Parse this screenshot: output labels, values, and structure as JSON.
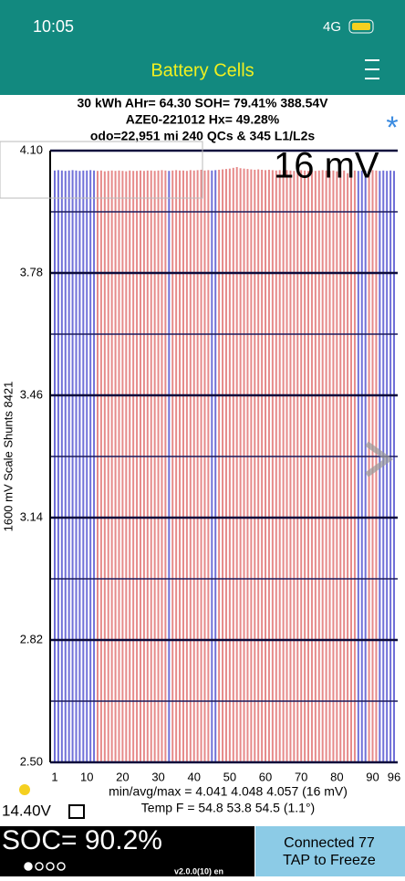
{
  "status_bar": {
    "time": "10:05",
    "network": "4G"
  },
  "header": {
    "title": "Battery Cells"
  },
  "info": {
    "lines": [
      "30 kWh  AHr= 64.30  SOH= 79.41%   388.54V",
      "AZE0-221012   Hx= 49.28%",
      "odo=22,951 mi 240 QCs & 345 L1/L2s"
    ],
    "star": "*"
  },
  "chart_data": {
    "type": "bar",
    "ylabel": "1600 mV Scale   Shunts 8421",
    "annotation": "16 mV",
    "categories": [
      "1",
      null,
      null,
      null,
      null,
      null,
      null,
      null,
      null,
      "10",
      null,
      null,
      null,
      null,
      null,
      null,
      null,
      null,
      null,
      "20",
      null,
      null,
      null,
      null,
      null,
      null,
      null,
      null,
      null,
      "30",
      null,
      null,
      null,
      null,
      null,
      null,
      null,
      null,
      null,
      "40",
      null,
      null,
      null,
      null,
      null,
      null,
      null,
      null,
      null,
      "50",
      null,
      null,
      null,
      null,
      null,
      null,
      null,
      null,
      null,
      "60",
      null,
      null,
      null,
      null,
      null,
      null,
      null,
      null,
      null,
      "70",
      null,
      null,
      null,
      null,
      null,
      null,
      null,
      null,
      null,
      "80",
      null,
      null,
      null,
      null,
      null,
      null,
      null,
      null,
      null,
      "90",
      null,
      null,
      null,
      null,
      null,
      "96"
    ],
    "values": [
      4.048,
      4.049,
      4.048,
      4.047,
      4.048,
      4.049,
      4.048,
      4.047,
      4.048,
      4.048,
      4.049,
      4.048,
      4.047,
      4.048,
      4.046,
      4.047,
      4.048,
      4.047,
      4.048,
      4.047,
      4.046,
      4.048,
      4.047,
      4.047,
      4.048,
      4.047,
      4.048,
      4.048,
      4.047,
      4.048,
      4.049,
      4.048,
      4.047,
      4.048,
      4.049,
      4.048,
      4.048,
      4.047,
      4.049,
      4.048,
      4.049,
      4.05,
      4.048,
      4.049,
      4.048,
      4.049,
      4.05,
      4.051,
      4.052,
      4.053,
      4.055,
      4.057,
      4.054,
      4.053,
      4.052,
      4.051,
      4.05,
      4.051,
      4.05,
      4.049,
      4.05,
      4.049,
      4.048,
      4.049,
      4.048,
      4.049,
      4.048,
      4.047,
      4.048,
      4.049,
      4.048,
      4.047,
      4.048,
      4.047,
      4.048,
      4.049,
      4.048,
      4.047,
      4.048,
      4.046,
      4.047,
      4.048,
      4.041,
      4.047,
      4.048,
      4.047,
      4.048,
      4.047,
      4.048,
      4.049,
      4.048,
      4.047,
      4.048,
      4.047,
      4.048,
      4.047
    ],
    "colors": [
      "#7070d8",
      "#7070d8",
      "#7070d8",
      "#7070d8",
      "#7070d8",
      "#7070d8",
      "#7070d8",
      "#7070d8",
      "#7070d8",
      "#7070d8",
      "#7070d8",
      "#7070d8",
      "#e68a8a",
      "#e68a8a",
      "#e68a8a",
      "#e68a8a",
      "#e68a8a",
      "#e68a8a",
      "#e68a8a",
      "#e68a8a",
      "#e68a8a",
      "#e68a8a",
      "#e68a8a",
      "#e68a8a",
      "#e68a8a",
      "#e68a8a",
      "#e68a8a",
      "#e68a8a",
      "#e68a8a",
      "#e68a8a",
      "#e68a8a",
      "#e68a8a",
      "#7070d8",
      "#e68a8a",
      "#e68a8a",
      "#e68a8a",
      "#e68a8a",
      "#e68a8a",
      "#e68a8a",
      "#e68a8a",
      "#e68a8a",
      "#e68a8a",
      "#e68a8a",
      "#e68a8a",
      "#7070d8",
      "#7070d8",
      "#e68a8a",
      "#e68a8a",
      "#e68a8a",
      "#e68a8a",
      "#e68a8a",
      "#e68a8a",
      "#e68a8a",
      "#e68a8a",
      "#e68a8a",
      "#e68a8a",
      "#e68a8a",
      "#e68a8a",
      "#e68a8a",
      "#e68a8a",
      "#e68a8a",
      "#e68a8a",
      "#e68a8a",
      "#e68a8a",
      "#e68a8a",
      "#e68a8a",
      "#e68a8a",
      "#e68a8a",
      "#e68a8a",
      "#e68a8a",
      "#e68a8a",
      "#e68a8a",
      "#e68a8a",
      "#e68a8a",
      "#e68a8a",
      "#e68a8a",
      "#e68a8a",
      "#e68a8a",
      "#e68a8a",
      "#e68a8a",
      "#e68a8a",
      "#e68a8a",
      "#e68a8a",
      "#e68a8a",
      "#e68a8a",
      "#7070d8",
      "#7070d8",
      "#7070d8",
      "#e68a8a",
      "#e68a8a",
      "#e68a8a",
      "#7070d8",
      "#7070d8",
      "#7070d8",
      "#7070d8",
      "#7070d8"
    ],
    "ylim": [
      2.5,
      4.1
    ],
    "yticks": [
      {
        "value": 2.5,
        "label": "2.50"
      },
      2.82,
      3.14,
      3.46,
      3.78,
      {
        "value": 4.1,
        "label": "4.10"
      }
    ],
    "minor_yticks": [
      2.66,
      2.98,
      3.3,
      3.62,
      3.94
    ],
    "grid": true
  },
  "stats": {
    "line1": "min/avg/max = 4.041 4.048 4.057  (16 mV)",
    "line2": "Temp F = 54.8  53.8  54.5  (1.1°)"
  },
  "voltage": "14.40V",
  "soc": "SOC= 90.2%",
  "connect": {
    "status": "Connected 77",
    "action": "TAP to Freeze"
  },
  "version": "v2.0.0(10) en"
}
